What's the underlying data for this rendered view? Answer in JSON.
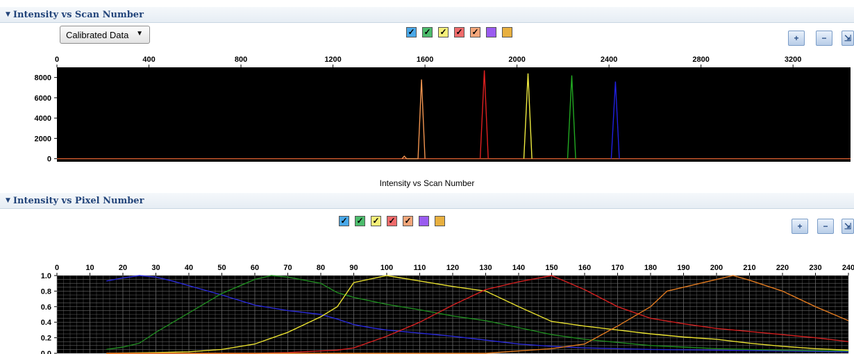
{
  "sections": [
    {
      "title": "Intensity vs Scan Number"
    },
    {
      "title": "Intensity vs Pixel Number"
    }
  ],
  "dropdown": {
    "selected": "Calibrated Data"
  },
  "icons": {
    "dropdown_arrow": "chevron-down-icon",
    "collapse": "triangle-down-icon",
    "zoom_in": "zoom-in-icon",
    "zoom_out": "zoom-out-icon",
    "pan": "pan-icon"
  },
  "legend": {
    "checkmark": "✓",
    "dyes": [
      {
        "color": "#4aa8e8"
      },
      {
        "color": "#4cbc6c"
      },
      {
        "color": "#f5ef7a"
      },
      {
        "color": "#ef6b6b"
      },
      {
        "color": "#f3a67a"
      },
      {
        "color": "#9a5cf0"
      },
      {
        "color": "#e8b040"
      }
    ]
  },
  "chart_data": [
    {
      "type": "line",
      "title": "Intensity vs Scan Number",
      "xlabel": "",
      "ylabel": "",
      "xlim": [
        0,
        3450
      ],
      "ylim": [
        -300,
        9000
      ],
      "x_ticks": [
        0,
        400,
        800,
        1200,
        1600,
        2000,
        2400,
        2800,
        3200
      ],
      "y_ticks": [
        0,
        2000,
        4000,
        6000,
        8000
      ],
      "background": "#000000",
      "grid": false,
      "series": [
        {
          "color": "#f39550",
          "points": [
            [
              1500,
              0
            ],
            [
              1510,
              250
            ],
            [
              1520,
              0
            ],
            [
              1570,
              0
            ],
            [
              1585,
              7800
            ],
            [
              1600,
              0
            ]
          ]
        },
        {
          "color": "#e02020",
          "points": [
            [
              1840,
              0
            ],
            [
              1858,
              8700
            ],
            [
              1875,
              0
            ]
          ]
        },
        {
          "color": "#f0ec40",
          "points": [
            [
              2030,
              0
            ],
            [
              2048,
              8400
            ],
            [
              2065,
              0
            ]
          ]
        },
        {
          "color": "#22aa22",
          "points": [
            [
              2220,
              0
            ],
            [
              2238,
              8200
            ],
            [
              2255,
              0
            ]
          ]
        },
        {
          "color": "#2020e0",
          "points": [
            [
              2410,
              0
            ],
            [
              2428,
              7600
            ],
            [
              2445,
              0
            ]
          ]
        }
      ]
    },
    {
      "type": "line",
      "title": "Intensity vs Pixel Number",
      "xlabel": "",
      "ylabel": "",
      "xlim": [
        0,
        240
      ],
      "ylim": [
        0,
        1.0
      ],
      "x_ticks": [
        0,
        10,
        20,
        30,
        40,
        50,
        60,
        70,
        80,
        90,
        100,
        110,
        120,
        130,
        140,
        150,
        160,
        170,
        180,
        190,
        200,
        210,
        220,
        230,
        240
      ],
      "y_ticks": [
        0.0,
        0.2,
        0.4,
        0.6,
        0.8,
        1.0
      ],
      "background": "#000000",
      "grid": true,
      "series": [
        {
          "color": "#2a2ad8",
          "points": [
            [
              15,
              0.93
            ],
            [
              20,
              0.97
            ],
            [
              25,
              1.0
            ],
            [
              30,
              0.98
            ],
            [
              35,
              0.93
            ],
            [
              40,
              0.87
            ],
            [
              50,
              0.75
            ],
            [
              60,
              0.62
            ],
            [
              70,
              0.55
            ],
            [
              80,
              0.5
            ],
            [
              85,
              0.44
            ],
            [
              90,
              0.37
            ],
            [
              95,
              0.33
            ],
            [
              100,
              0.3
            ],
            [
              110,
              0.26
            ],
            [
              120,
              0.22
            ],
            [
              130,
              0.17
            ],
            [
              140,
              0.12
            ],
            [
              150,
              0.09
            ],
            [
              160,
              0.07
            ],
            [
              180,
              0.05
            ],
            [
              200,
              0.04
            ],
            [
              220,
              0.03
            ],
            [
              240,
              0.02
            ]
          ]
        },
        {
          "color": "#1f8a1f",
          "points": [
            [
              15,
              0.05
            ],
            [
              20,
              0.08
            ],
            [
              25,
              0.13
            ],
            [
              30,
              0.27
            ],
            [
              40,
              0.52
            ],
            [
              50,
              0.77
            ],
            [
              60,
              0.95
            ],
            [
              65,
              1.0
            ],
            [
              70,
              0.98
            ],
            [
              80,
              0.9
            ],
            [
              85,
              0.78
            ],
            [
              90,
              0.72
            ],
            [
              100,
              0.63
            ],
            [
              110,
              0.56
            ],
            [
              120,
              0.48
            ],
            [
              130,
              0.42
            ],
            [
              140,
              0.33
            ],
            [
              150,
              0.24
            ],
            [
              160,
              0.18
            ],
            [
              170,
              0.14
            ],
            [
              180,
              0.1
            ],
            [
              190,
              0.08
            ],
            [
              200,
              0.06
            ],
            [
              220,
              0.04
            ],
            [
              240,
              0.03
            ]
          ]
        },
        {
          "color": "#e8e030",
          "points": [
            [
              15,
              0.0
            ],
            [
              30,
              0.01
            ],
            [
              40,
              0.02
            ],
            [
              50,
              0.05
            ],
            [
              60,
              0.12
            ],
            [
              70,
              0.27
            ],
            [
              80,
              0.47
            ],
            [
              85,
              0.6
            ],
            [
              90,
              0.91
            ],
            [
              100,
              1.0
            ],
            [
              110,
              0.93
            ],
            [
              120,
              0.86
            ],
            [
              130,
              0.8
            ],
            [
              140,
              0.6
            ],
            [
              150,
              0.41
            ],
            [
              160,
              0.35
            ],
            [
              170,
              0.3
            ],
            [
              180,
              0.25
            ],
            [
              190,
              0.21
            ],
            [
              200,
              0.18
            ],
            [
              210,
              0.13
            ],
            [
              220,
              0.09
            ],
            [
              230,
              0.06
            ],
            [
              240,
              0.04
            ]
          ]
        },
        {
          "color": "#d42020",
          "points": [
            [
              15,
              0.0
            ],
            [
              40,
              0.0
            ],
            [
              50,
              0.0
            ],
            [
              60,
              0.0
            ],
            [
              70,
              0.01
            ],
            [
              80,
              0.03
            ],
            [
              85,
              0.04
            ],
            [
              90,
              0.07
            ],
            [
              100,
              0.22
            ],
            [
              110,
              0.4
            ],
            [
              120,
              0.62
            ],
            [
              130,
              0.82
            ],
            [
              140,
              0.92
            ],
            [
              150,
              1.0
            ],
            [
              160,
              0.82
            ],
            [
              170,
              0.6
            ],
            [
              180,
              0.45
            ],
            [
              190,
              0.38
            ],
            [
              200,
              0.32
            ],
            [
              210,
              0.28
            ],
            [
              220,
              0.24
            ],
            [
              230,
              0.2
            ],
            [
              240,
              0.15
            ]
          ]
        },
        {
          "color": "#e07a20",
          "points": [
            [
              15,
              0.0
            ],
            [
              60,
              0.0
            ],
            [
              100,
              0.0
            ],
            [
              120,
              0.0
            ],
            [
              130,
              0.0
            ],
            [
              140,
              0.03
            ],
            [
              150,
              0.06
            ],
            [
              160,
              0.12
            ],
            [
              170,
              0.35
            ],
            [
              180,
              0.6
            ],
            [
              185,
              0.8
            ],
            [
              195,
              0.9
            ],
            [
              205,
              1.0
            ],
            [
              210,
              0.94
            ],
            [
              220,
              0.8
            ],
            [
              230,
              0.6
            ],
            [
              240,
              0.42
            ]
          ]
        }
      ]
    }
  ]
}
